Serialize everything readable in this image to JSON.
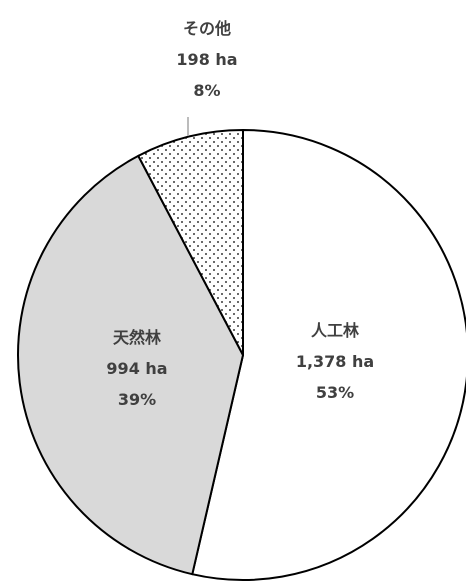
{
  "chart_data": {
    "type": "pie",
    "title": "",
    "slices": [
      {
        "label": "人工林",
        "value": 1378,
        "value_label": "1,378 ha",
        "percent": 53,
        "percent_label": "53%",
        "fill": "#ffffff",
        "pattern": "none"
      },
      {
        "label": "天然林",
        "value": 994,
        "value_label": "994 ha",
        "percent": 39,
        "percent_label": "39%",
        "fill": "#d9d9d9",
        "pattern": "none"
      },
      {
        "label": "その他",
        "value": 198,
        "value_label": "198 ha",
        "percent": 8,
        "percent_label": "8%",
        "fill": "#ffffff",
        "pattern": "dots"
      }
    ],
    "start_angle": "12 o'clock",
    "direction": "clockwise",
    "stroke_color": "#000000",
    "label_color": "#404040",
    "legend": "none"
  }
}
